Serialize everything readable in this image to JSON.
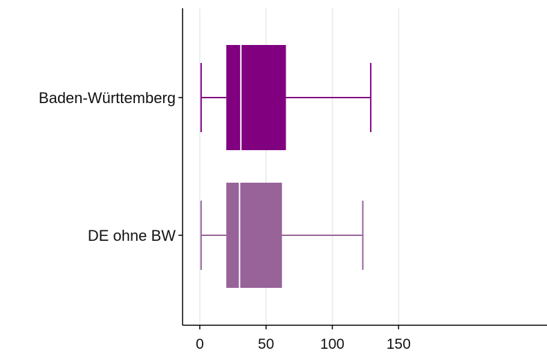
{
  "chart_data": {
    "type": "boxplot",
    "orientation": "horizontal",
    "title": "",
    "xlabel": "",
    "ylabel": "",
    "categories": [
      "Baden-Württemberg",
      "DE ohne BW"
    ],
    "boxes": [
      {
        "name": "Baden-Württemberg",
        "min": 1,
        "q1": 20,
        "median": 31,
        "q3": 65,
        "max": 129,
        "color": "#800080"
      },
      {
        "name": "DE ohne BW",
        "min": 1,
        "q1": 20,
        "median": 30,
        "q3": 62,
        "max": 123,
        "color": "#976399"
      }
    ],
    "xlim": [
      -13,
      262
    ],
    "xticks": [
      0,
      50,
      100,
      150
    ],
    "xtick_labels": [
      "0",
      "50",
      "100",
      "150"
    ],
    "grid": true,
    "grid_color": "#e4eaea",
    "legend": "none"
  }
}
